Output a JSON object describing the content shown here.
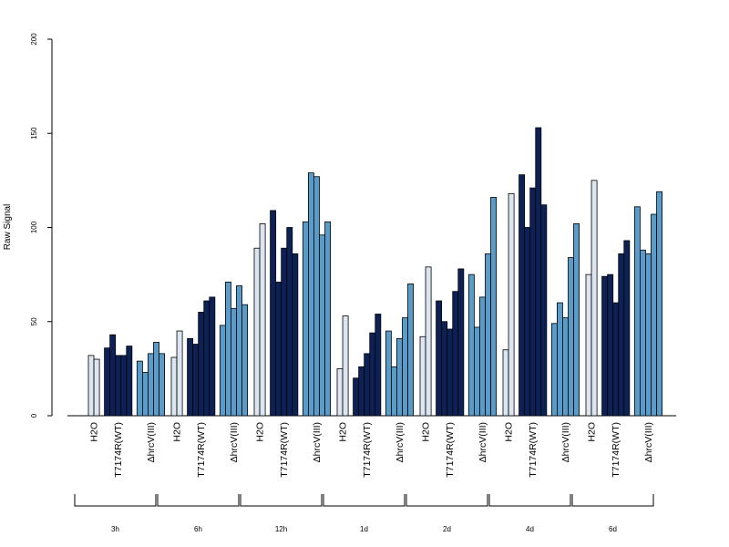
{
  "chart_data": {
    "type": "bar",
    "ylabel": "Raw Signal",
    "ylim": [
      0,
      200
    ],
    "yticks": [
      "0",
      "50",
      "100",
      "150",
      "200"
    ],
    "category_labels": [
      "H2O",
      "T7174R(WT)",
      "ΔhrcV(III)"
    ],
    "colors": {
      "H2O": "#dce6f2",
      "T7174R(WT)": "#0c2257",
      "ΔhrcV(III)": "#5a9cc9"
    },
    "groups": [
      {
        "label": "3h",
        "H2O": [
          32,
          30
        ],
        "T7174R(WT)": [
          36,
          43,
          32,
          32,
          37
        ],
        "ΔhrcV(III)": [
          29,
          23,
          33,
          39,
          33
        ]
      },
      {
        "label": "6h",
        "H2O": [
          31,
          45
        ],
        "T7174R(WT)": [
          41,
          38,
          55,
          61,
          63
        ],
        "ΔhrcV(III)": [
          48,
          71,
          57,
          69,
          59
        ]
      },
      {
        "label": "12h",
        "H2O": [
          89,
          102
        ],
        "T7174R(WT)": [
          109,
          71,
          89,
          100,
          86
        ],
        "ΔhrcV(III)": [
          103,
          129,
          127,
          96,
          103
        ]
      },
      {
        "label": "1d",
        "H2O": [
          25,
          53
        ],
        "T7174R(WT)": [
          20,
          26,
          33,
          44,
          54
        ],
        "ΔhrcV(III)": [
          45,
          26,
          41,
          52,
          70
        ]
      },
      {
        "label": "2d",
        "H2O": [
          42,
          79
        ],
        "T7174R(WT)": [
          61,
          50,
          46,
          66,
          78
        ],
        "ΔhrcV(III)": [
          75,
          47,
          63,
          86,
          116
        ]
      },
      {
        "label": "4d",
        "H2O": [
          35,
          118
        ],
        "T7174R(WT)": [
          128,
          100,
          121,
          153,
          112
        ],
        "ΔhrcV(III)": [
          49,
          60,
          52,
          84,
          102
        ]
      },
      {
        "label": "6d",
        "H2O": [
          75,
          125
        ],
        "T7174R(WT)": [
          74,
          75,
          60,
          86,
          93
        ],
        "ΔhrcV(III)": [
          111,
          88,
          86,
          107,
          119
        ]
      }
    ]
  }
}
